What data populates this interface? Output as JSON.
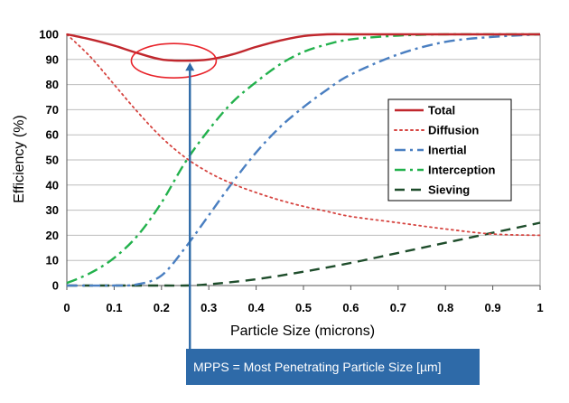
{
  "chart_data": {
    "type": "line",
    "title": "",
    "xlabel": "Particle Size (microns)",
    "ylabel": "Efficiency (%)",
    "xlim": [
      0,
      1
    ],
    "ylim": [
      0,
      100
    ],
    "xticks": [
      "0",
      "0.1",
      "0.2",
      "0.3",
      "0.4",
      "0.5",
      "0.6",
      "0.7",
      "0.8",
      "0.9",
      "1"
    ],
    "yticks": [
      "0",
      "10",
      "20",
      "30",
      "40",
      "50",
      "60",
      "70",
      "80",
      "90",
      "100"
    ],
    "grid": "horizontal",
    "legend_position": "right",
    "series": [
      {
        "name": "Total",
        "color": "#c0272d",
        "dash": "solid",
        "x": [
          0,
          0.05,
          0.1,
          0.15,
          0.2,
          0.25,
          0.3,
          0.35,
          0.4,
          0.45,
          0.5,
          0.55,
          0.6,
          0.7,
          0.8,
          0.9,
          1.0
        ],
        "y": [
          100,
          98,
          95.5,
          92.5,
          90,
          89.5,
          90,
          92,
          95,
          97.5,
          99.3,
          100,
          100,
          100,
          100,
          100,
          100
        ]
      },
      {
        "name": "Diffusion",
        "color": "#d64541",
        "dash": "dotted",
        "x": [
          0,
          0.05,
          0.1,
          0.15,
          0.2,
          0.25,
          0.3,
          0.35,
          0.4,
          0.45,
          0.5,
          0.55,
          0.6,
          0.7,
          0.8,
          0.9,
          1.0
        ],
        "y": [
          100,
          91,
          80,
          69,
          59,
          51,
          45,
          40.5,
          37,
          34,
          31.5,
          29.5,
          27.5,
          25,
          22.5,
          20.5,
          20
        ]
      },
      {
        "name": "Inertial",
        "color": "#4a7fc1",
        "dash": "dashdot",
        "x": [
          0,
          0.1,
          0.15,
          0.2,
          0.25,
          0.3,
          0.35,
          0.4,
          0.45,
          0.5,
          0.55,
          0.6,
          0.7,
          0.8,
          0.9,
          1.0
        ],
        "y": [
          0,
          0,
          0.5,
          4,
          15,
          28,
          41,
          53,
          63,
          71,
          78,
          84,
          92,
          97,
          99,
          100
        ]
      },
      {
        "name": "Interception",
        "color": "#22b14c",
        "dash": "dashdot",
        "x": [
          0,
          0.05,
          0.1,
          0.15,
          0.2,
          0.25,
          0.3,
          0.35,
          0.4,
          0.45,
          0.5,
          0.55,
          0.6,
          0.7,
          0.8,
          0.9,
          1.0
        ],
        "y": [
          1,
          5,
          11,
          20,
          33,
          49,
          62,
          73,
          81,
          88,
          93,
          96,
          98,
          99.5,
          100,
          100,
          100
        ]
      },
      {
        "name": "Sieving",
        "color": "#1e4d2b",
        "dash": "dashed",
        "x": [
          0,
          0.1,
          0.2,
          0.25,
          0.3,
          0.4,
          0.5,
          0.6,
          0.7,
          0.8,
          0.9,
          1.0
        ],
        "y": [
          0,
          0,
          0,
          0,
          0.5,
          2.5,
          5.5,
          9,
          13,
          17,
          21,
          25
        ]
      }
    ],
    "annotations": [
      {
        "text": "MPPS = Most Penetrating Particle Size [µm]",
        "x": 0.26,
        "y": 89.5
      }
    ]
  }
}
